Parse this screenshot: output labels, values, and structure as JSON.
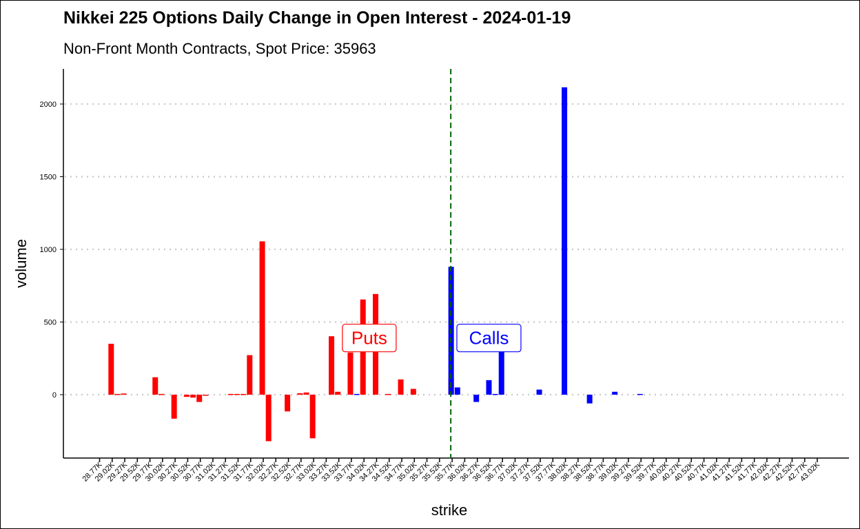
{
  "chart_data": {
    "type": "bar",
    "title": "Nikkei 225 Options Daily Change in Open Interest - 2024-01-19",
    "subtitle": "Non-Front Month Contracts, Spot Price: 35963",
    "xlabel": "strike",
    "ylabel": "volume",
    "ylim": [
      -430,
      2250
    ],
    "y_ticks": [
      0,
      500,
      1000,
      1500,
      2000
    ],
    "grid": "horizontal dotted",
    "spot_price": 35963,
    "categories": [
      "28.77K",
      "29.02K",
      "29.27K",
      "29.52K",
      "29.77K",
      "30.02K",
      "30.27K",
      "30.52K",
      "30.77K",
      "31.02K",
      "31.27K",
      "31.52K",
      "31.77K",
      "32.02K",
      "32.27K",
      "32.52K",
      "32.77K",
      "33.02K",
      "33.27K",
      "33.52K",
      "33.77K",
      "34.02K",
      "34.27K",
      "34.52K",
      "34.77K",
      "35.02K",
      "35.27K",
      "35.52K",
      "35.77K",
      "36.02K",
      "36.27K",
      "36.52K",
      "36.77K",
      "37.02K",
      "37.27K",
      "37.52K",
      "37.77K",
      "38.02K",
      "38.27K",
      "38.52K",
      "38.77K",
      "39.02K",
      "39.27K",
      "39.52K",
      "39.77K",
      "40.02K",
      "40.27K",
      "40.52K",
      "40.77K",
      "41.02K",
      "41.27K",
      "41.52K",
      "41.77K",
      "42.02K",
      "42.27K",
      "42.52K",
      "42.77K",
      "43.02K"
    ],
    "strikes": [
      28770,
      29020,
      29270,
      29520,
      29770,
      30020,
      30270,
      30520,
      30770,
      31020,
      31270,
      31520,
      31770,
      32020,
      32270,
      32520,
      32770,
      33020,
      33270,
      33520,
      33770,
      34020,
      34270,
      34520,
      34770,
      35020,
      35270,
      35520,
      35770,
      36020,
      36270,
      36520,
      36770,
      37020,
      37270,
      37520,
      37770,
      38020,
      38270,
      38520,
      38770,
      39020,
      39270,
      39520,
      39770,
      40020,
      40270,
      40520,
      40770,
      41020,
      41270,
      41520,
      41770,
      42020,
      42270,
      42520,
      42770,
      43020
    ],
    "series": [
      {
        "name": "Puts",
        "color": "#FF0000",
        "points": [
          {
            "strike": 29000,
            "value": 350
          },
          {
            "strike": 29125,
            "value": 5
          },
          {
            "strike": 29250,
            "value": 8
          },
          {
            "strike": 29875,
            "value": 120
          },
          {
            "strike": 30000,
            "value": 5
          },
          {
            "strike": 30250,
            "value": -165
          },
          {
            "strike": 30500,
            "value": -15
          },
          {
            "strike": 30625,
            "value": -20
          },
          {
            "strike": 30750,
            "value": -50
          },
          {
            "strike": 30875,
            "value": -5
          },
          {
            "strike": 31375,
            "value": 5
          },
          {
            "strike": 31500,
            "value": 5
          },
          {
            "strike": 31625,
            "value": 5
          },
          {
            "strike": 31750,
            "value": 272
          },
          {
            "strike": 32000,
            "value": 1055
          },
          {
            "strike": 32125,
            "value": -320
          },
          {
            "strike": 32500,
            "value": -115
          },
          {
            "strike": 32750,
            "value": 10
          },
          {
            "strike": 32875,
            "value": 15
          },
          {
            "strike": 33000,
            "value": -300
          },
          {
            "strike": 33375,
            "value": 402
          },
          {
            "strike": 33500,
            "value": 20
          },
          {
            "strike": 33750,
            "value": 290
          },
          {
            "strike": 34000,
            "value": 655
          },
          {
            "strike": 34250,
            "value": 693
          },
          {
            "strike": 34500,
            "value": 5
          },
          {
            "strike": 34750,
            "value": 105
          },
          {
            "strike": 35000,
            "value": 40
          },
          {
            "strike": 35750,
            "value": 110
          }
        ]
      },
      {
        "name": "Calls",
        "color": "#0000FF",
        "points": [
          {
            "strike": 33875,
            "value": 5
          },
          {
            "strike": 35750,
            "value": 880
          },
          {
            "strike": 35875,
            "value": 50
          },
          {
            "strike": 36250,
            "value": -50
          },
          {
            "strike": 36500,
            "value": 100
          },
          {
            "strike": 36625,
            "value": 5
          },
          {
            "strike": 36750,
            "value": 480
          },
          {
            "strike": 37500,
            "value": 35
          },
          {
            "strike": 38000,
            "value": 2115
          },
          {
            "strike": 38500,
            "value": -60
          },
          {
            "strike": 39000,
            "value": 20
          },
          {
            "strike": 39500,
            "value": 5
          }
        ]
      }
    ],
    "annotations": [
      {
        "label": "Puts",
        "color": "#FF0000",
        "x": 34125,
        "y": 390
      },
      {
        "label": "Calls",
        "color": "#0000FF",
        "x": 36500,
        "y": 390
      }
    ],
    "vline": {
      "strike": 35750,
      "color": "#006400",
      "style": "dashed"
    }
  }
}
